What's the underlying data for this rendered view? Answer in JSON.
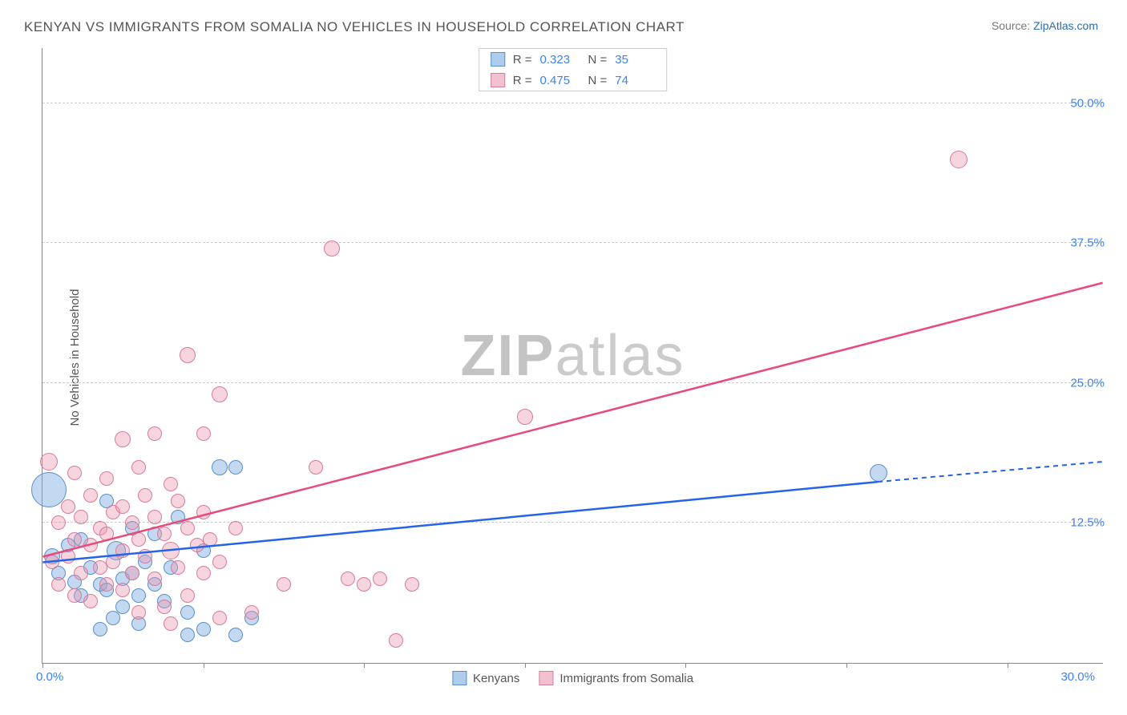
{
  "title": "KENYAN VS IMMIGRANTS FROM SOMALIA NO VEHICLES IN HOUSEHOLD CORRELATION CHART",
  "source_prefix": "Source: ",
  "source_link": "ZipAtlas.com",
  "ylabel": "No Vehicles in Household",
  "watermark_a": "ZIP",
  "watermark_b": "atlas",
  "chart": {
    "type": "scatter",
    "xlim": [
      0,
      33
    ],
    "ylim": [
      0,
      55
    ],
    "xtick_min_label": "0.0%",
    "xtick_max_label": "30.0%",
    "xtick_positions": [
      0,
      5,
      10,
      15,
      20,
      25,
      30
    ],
    "yticks": [
      {
        "v": 12.5,
        "label": "12.5%"
      },
      {
        "v": 25.0,
        "label": "25.0%"
      },
      {
        "v": 37.5,
        "label": "37.5%"
      },
      {
        "v": 50.0,
        "label": "50.0%"
      }
    ],
    "grid_color": "#cccccc",
    "background_color": "#ffffff",
    "series": [
      {
        "name": "Kenyans",
        "color_fill": "rgba(120,170,225,0.45)",
        "color_stroke": "#5b8fc7",
        "trend_color": "#2563eb",
        "r_value": "0.323",
        "n_value": "35",
        "trend": {
          "x1": 0,
          "y1": 9.0,
          "x2": 26,
          "y2": 16.2,
          "extend_x": 33,
          "extend_y": 18.0
        },
        "points": [
          {
            "x": 0.2,
            "y": 15.5,
            "r": 22
          },
          {
            "x": 0.3,
            "y": 9.5,
            "r": 10
          },
          {
            "x": 0.5,
            "y": 8.0,
            "r": 9
          },
          {
            "x": 0.8,
            "y": 10.5,
            "r": 9
          },
          {
            "x": 1.0,
            "y": 7.2,
            "r": 9
          },
          {
            "x": 1.2,
            "y": 11.0,
            "r": 9
          },
          {
            "x": 1.2,
            "y": 6.0,
            "r": 9
          },
          {
            "x": 1.5,
            "y": 8.5,
            "r": 9
          },
          {
            "x": 1.8,
            "y": 7.0,
            "r": 9
          },
          {
            "x": 1.8,
            "y": 3.0,
            "r": 9
          },
          {
            "x": 2.0,
            "y": 14.5,
            "r": 9
          },
          {
            "x": 2.0,
            "y": 6.5,
            "r": 9
          },
          {
            "x": 2.2,
            "y": 4.0,
            "r": 9
          },
          {
            "x": 2.3,
            "y": 10.0,
            "r": 12
          },
          {
            "x": 2.5,
            "y": 7.5,
            "r": 9
          },
          {
            "x": 2.5,
            "y": 5.0,
            "r": 9
          },
          {
            "x": 2.8,
            "y": 8.0,
            "r": 9
          },
          {
            "x": 2.8,
            "y": 12.0,
            "r": 9
          },
          {
            "x": 3.0,
            "y": 6.0,
            "r": 9
          },
          {
            "x": 3.0,
            "y": 3.5,
            "r": 9
          },
          {
            "x": 3.2,
            "y": 9.0,
            "r": 9
          },
          {
            "x": 3.5,
            "y": 11.5,
            "r": 9
          },
          {
            "x": 3.5,
            "y": 7.0,
            "r": 9
          },
          {
            "x": 3.8,
            "y": 5.5,
            "r": 9
          },
          {
            "x": 4.0,
            "y": 8.5,
            "r": 9
          },
          {
            "x": 4.2,
            "y": 13.0,
            "r": 9
          },
          {
            "x": 4.5,
            "y": 4.5,
            "r": 9
          },
          {
            "x": 4.5,
            "y": 2.5,
            "r": 9
          },
          {
            "x": 5.0,
            "y": 10.0,
            "r": 9
          },
          {
            "x": 5.0,
            "y": 3.0,
            "r": 9
          },
          {
            "x": 5.5,
            "y": 17.5,
            "r": 10
          },
          {
            "x": 6.0,
            "y": 17.5,
            "r": 9
          },
          {
            "x": 6.0,
            "y": 2.5,
            "r": 9
          },
          {
            "x": 6.5,
            "y": 4.0,
            "r": 9
          },
          {
            "x": 26.0,
            "y": 17.0,
            "r": 11
          }
        ]
      },
      {
        "name": "Immigrants from Somalia",
        "color_fill": "rgba(235,150,175,0.4)",
        "color_stroke": "#d97a9b",
        "trend_color": "#e84a7a",
        "r_value": "0.475",
        "n_value": "74",
        "trend": {
          "x1": 0,
          "y1": 9.5,
          "x2": 33,
          "y2": 34.0
        },
        "points": [
          {
            "x": 0.2,
            "y": 18.0,
            "r": 11
          },
          {
            "x": 0.3,
            "y": 9.0,
            "r": 9
          },
          {
            "x": 0.5,
            "y": 12.5,
            "r": 9
          },
          {
            "x": 0.5,
            "y": 7.0,
            "r": 9
          },
          {
            "x": 0.8,
            "y": 14.0,
            "r": 9
          },
          {
            "x": 0.8,
            "y": 9.5,
            "r": 9
          },
          {
            "x": 1.0,
            "y": 17.0,
            "r": 9
          },
          {
            "x": 1.0,
            "y": 11.0,
            "r": 9
          },
          {
            "x": 1.0,
            "y": 6.0,
            "r": 9
          },
          {
            "x": 1.2,
            "y": 13.0,
            "r": 9
          },
          {
            "x": 1.2,
            "y": 8.0,
            "r": 9
          },
          {
            "x": 1.5,
            "y": 15.0,
            "r": 9
          },
          {
            "x": 1.5,
            "y": 10.5,
            "r": 9
          },
          {
            "x": 1.5,
            "y": 5.5,
            "r": 9
          },
          {
            "x": 1.8,
            "y": 12.0,
            "r": 9
          },
          {
            "x": 1.8,
            "y": 8.5,
            "r": 9
          },
          {
            "x": 2.0,
            "y": 16.5,
            "r": 9
          },
          {
            "x": 2.0,
            "y": 11.5,
            "r": 9
          },
          {
            "x": 2.0,
            "y": 7.0,
            "r": 9
          },
          {
            "x": 2.2,
            "y": 13.5,
            "r": 9
          },
          {
            "x": 2.2,
            "y": 9.0,
            "r": 9
          },
          {
            "x": 2.5,
            "y": 20.0,
            "r": 10
          },
          {
            "x": 2.5,
            "y": 14.0,
            "r": 9
          },
          {
            "x": 2.5,
            "y": 10.0,
            "r": 9
          },
          {
            "x": 2.5,
            "y": 6.5,
            "r": 9
          },
          {
            "x": 2.8,
            "y": 12.5,
            "r": 9
          },
          {
            "x": 2.8,
            "y": 8.0,
            "r": 9
          },
          {
            "x": 3.0,
            "y": 17.5,
            "r": 9
          },
          {
            "x": 3.0,
            "y": 11.0,
            "r": 9
          },
          {
            "x": 3.0,
            "y": 4.5,
            "r": 9
          },
          {
            "x": 3.2,
            "y": 15.0,
            "r": 9
          },
          {
            "x": 3.2,
            "y": 9.5,
            "r": 9
          },
          {
            "x": 3.5,
            "y": 20.5,
            "r": 9
          },
          {
            "x": 3.5,
            "y": 13.0,
            "r": 9
          },
          {
            "x": 3.5,
            "y": 7.5,
            "r": 9
          },
          {
            "x": 3.8,
            "y": 11.5,
            "r": 9
          },
          {
            "x": 3.8,
            "y": 5.0,
            "r": 9
          },
          {
            "x": 4.0,
            "y": 16.0,
            "r": 9
          },
          {
            "x": 4.0,
            "y": 10.0,
            "r": 11
          },
          {
            "x": 4.0,
            "y": 3.5,
            "r": 9
          },
          {
            "x": 4.2,
            "y": 14.5,
            "r": 9
          },
          {
            "x": 4.2,
            "y": 8.5,
            "r": 9
          },
          {
            "x": 4.5,
            "y": 27.5,
            "r": 10
          },
          {
            "x": 4.5,
            "y": 12.0,
            "r": 9
          },
          {
            "x": 4.5,
            "y": 6.0,
            "r": 9
          },
          {
            "x": 4.8,
            "y": 10.5,
            "r": 9
          },
          {
            "x": 5.0,
            "y": 20.5,
            "r": 9
          },
          {
            "x": 5.0,
            "y": 13.5,
            "r": 9
          },
          {
            "x": 5.0,
            "y": 8.0,
            "r": 9
          },
          {
            "x": 5.2,
            "y": 11.0,
            "r": 9
          },
          {
            "x": 5.5,
            "y": 24.0,
            "r": 10
          },
          {
            "x": 5.5,
            "y": 9.0,
            "r": 9
          },
          {
            "x": 5.5,
            "y": 4.0,
            "r": 9
          },
          {
            "x": 6.0,
            "y": 12.0,
            "r": 9
          },
          {
            "x": 6.5,
            "y": 4.5,
            "r": 9
          },
          {
            "x": 7.5,
            "y": 7.0,
            "r": 9
          },
          {
            "x": 8.5,
            "y": 17.5,
            "r": 9
          },
          {
            "x": 9.0,
            "y": 37.0,
            "r": 10
          },
          {
            "x": 9.5,
            "y": 7.5,
            "r": 9
          },
          {
            "x": 10.0,
            "y": 7.0,
            "r": 9
          },
          {
            "x": 10.5,
            "y": 7.5,
            "r": 9
          },
          {
            "x": 11.5,
            "y": 7.0,
            "r": 9
          },
          {
            "x": 11.0,
            "y": 2.0,
            "r": 9
          },
          {
            "x": 15.0,
            "y": 22.0,
            "r": 10
          },
          {
            "x": 28.5,
            "y": 45.0,
            "r": 11
          }
        ]
      }
    ]
  },
  "stats_labels": {
    "R": "R =",
    "N": "N ="
  },
  "legend": [
    {
      "swatch": "sw-blue",
      "label": "Kenyans"
    },
    {
      "swatch": "sw-pink",
      "label": "Immigrants from Somalia"
    }
  ]
}
